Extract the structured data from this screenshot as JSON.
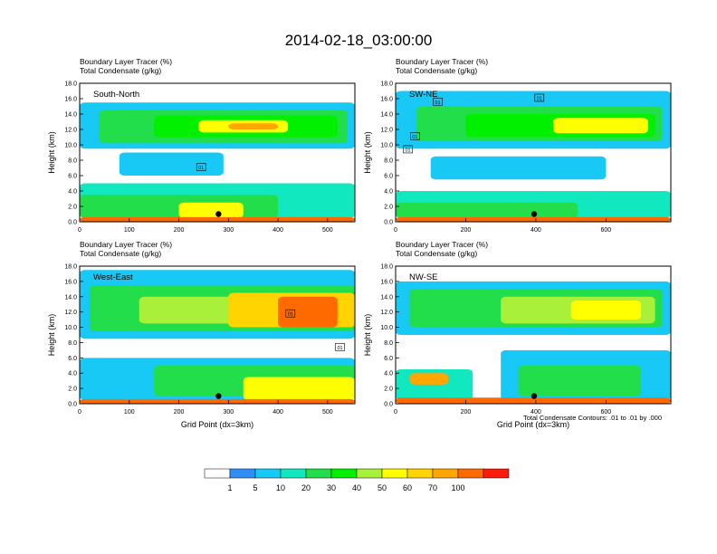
{
  "title": "2014-02-18_03:00:00",
  "colorbar": {
    "colors": [
      "#ffffff",
      "#2f8ff5",
      "#18c8f5",
      "#12e8c0",
      "#21de4a",
      "#00f000",
      "#a8f03a",
      "#ffff00",
      "#ffd400",
      "#ffa600",
      "#ff6a00",
      "#ff1a0a"
    ],
    "labels": [
      "1",
      "5",
      "10",
      "20",
      "30",
      "40",
      "50",
      "60",
      "70",
      "100"
    ]
  },
  "contour_note": "Total Condensate Contours: .01 to .01 by .000",
  "chart_data": [
    {
      "type": "heatmap",
      "panel": "South-North",
      "title_line1": "Boundary Layer Tracer    (%)",
      "title_line2": "Total Condensate    (g/kg)",
      "ylabel": "Height (km)",
      "xlabel": "",
      "xlim": [
        0,
        555
      ],
      "ylim": [
        0,
        18
      ],
      "xticks": [
        "0",
        "100",
        "200",
        "300",
        "400",
        "500"
      ],
      "xtick_values": [
        0,
        100,
        200,
        300,
        400,
        500
      ],
      "yticks": [
        "0.0",
        "2.0",
        "4.0",
        "6.0",
        "8.0",
        "10.0",
        "12.0",
        "14.0",
        "16.0",
        "18.0"
      ],
      "marker": {
        "x": 280,
        "y": 1.0
      },
      "contour_labels": [
        {
          "text": "01",
          "x": 245,
          "y": 7.0
        }
      ],
      "layers": [
        {
          "level": 2,
          "x0": 0,
          "x1": 555,
          "y0": 9.5,
          "y1": 15.5
        },
        {
          "level": 4,
          "x0": 40,
          "x1": 540,
          "y0": 10.2,
          "y1": 14.5
        },
        {
          "level": 5,
          "x0": 150,
          "x1": 520,
          "y0": 11.0,
          "y1": 13.8
        },
        {
          "level": 7,
          "x0": 240,
          "x1": 420,
          "y0": 11.6,
          "y1": 13.2
        },
        {
          "level": 9,
          "x0": 300,
          "x1": 400,
          "y0": 12.0,
          "y1": 12.8
        },
        {
          "level": 2,
          "x0": 80,
          "x1": 290,
          "y0": 6.0,
          "y1": 9.0
        },
        {
          "level": 3,
          "x0": 0,
          "x1": 555,
          "y0": 0.5,
          "y1": 5.0
        },
        {
          "level": 4,
          "x0": 0,
          "x1": 400,
          "y0": 0.5,
          "y1": 3.5
        },
        {
          "level": 7,
          "x0": 200,
          "x1": 330,
          "y0": 0.5,
          "y1": 2.5
        },
        {
          "level": 10,
          "x0": 0,
          "x1": 555,
          "y0": 0.0,
          "y1": 0.6
        }
      ]
    },
    {
      "type": "heatmap",
      "panel": "SW-NE",
      "title_line1": "Boundary Layer Tracer    (%)",
      "title_line2": "Total Condensate    (g/kg)",
      "ylabel": "Height (km)",
      "xlabel": "",
      "xlim": [
        0,
        785
      ],
      "ylim": [
        0,
        18
      ],
      "xticks": [
        "0",
        "200",
        "400",
        "600"
      ],
      "xtick_values": [
        0,
        200,
        400,
        600
      ],
      "yticks": [
        "0.0",
        "2.0",
        "4.0",
        "6.0",
        "8.0",
        "10.0",
        "12.0",
        "14.0",
        "16.0",
        "18.0"
      ],
      "marker": {
        "x": 395,
        "y": 1.0
      },
      "contour_labels": [
        {
          "text": "01",
          "x": 410,
          "y": 16.0
        },
        {
          "text": "01",
          "x": 120,
          "y": 15.5
        },
        {
          "text": "01",
          "x": 55,
          "y": 11.0
        },
        {
          "text": "01",
          "x": 35,
          "y": 9.3
        }
      ],
      "layers": [
        {
          "level": 2,
          "x0": 0,
          "x1": 785,
          "y0": 9.5,
          "y1": 17.0
        },
        {
          "level": 4,
          "x0": 60,
          "x1": 760,
          "y0": 10.5,
          "y1": 15.0
        },
        {
          "level": 5,
          "x0": 200,
          "x1": 740,
          "y0": 11.0,
          "y1": 14.0
        },
        {
          "level": 7,
          "x0": 450,
          "x1": 720,
          "y0": 11.5,
          "y1": 13.5
        },
        {
          "level": 2,
          "x0": 100,
          "x1": 600,
          "y0": 5.5,
          "y1": 8.5
        },
        {
          "level": 3,
          "x0": 0,
          "x1": 785,
          "y0": 0.5,
          "y1": 4.0
        },
        {
          "level": 4,
          "x0": 0,
          "x1": 520,
          "y0": 0.5,
          "y1": 2.5
        },
        {
          "level": 10,
          "x0": 0,
          "x1": 785,
          "y0": 0.0,
          "y1": 0.6
        }
      ]
    },
    {
      "type": "heatmap",
      "panel": "West-East",
      "title_line1": "Boundary Layer Tracer    (%)",
      "title_line2": "Total Condensate    (g/kg)",
      "ylabel": "Height (km)",
      "xlabel": "Grid Point (dx=3km)",
      "xlim": [
        0,
        555
      ],
      "ylim": [
        0,
        18
      ],
      "xticks": [
        "0",
        "100",
        "200",
        "300",
        "400",
        "500"
      ],
      "xtick_values": [
        0,
        100,
        200,
        300,
        400,
        500
      ],
      "yticks": [
        "0.0",
        "2.0",
        "4.0",
        "6.0",
        "8.0",
        "10.0",
        "12.0",
        "14.0",
        "16.0",
        "18.0"
      ],
      "marker": {
        "x": 280,
        "y": 1.0
      },
      "contour_labels": [
        {
          "text": "01",
          "x": 425,
          "y": 11.7
        },
        {
          "text": "01",
          "x": 525,
          "y": 7.3
        }
      ],
      "layers": [
        {
          "level": 2,
          "x0": 0,
          "x1": 555,
          "y0": 8.5,
          "y1": 17.5
        },
        {
          "level": 4,
          "x0": 20,
          "x1": 555,
          "y0": 9.5,
          "y1": 15.5
        },
        {
          "level": 6,
          "x0": 120,
          "x1": 555,
          "y0": 10.5,
          "y1": 14.0
        },
        {
          "level": 8,
          "x0": 300,
          "x1": 555,
          "y0": 10.0,
          "y1": 14.5
        },
        {
          "level": 10,
          "x0": 400,
          "x1": 520,
          "y0": 10.0,
          "y1": 14.0
        },
        {
          "level": 2,
          "x0": 0,
          "x1": 555,
          "y0": 0.5,
          "y1": 6.0
        },
        {
          "level": 4,
          "x0": 150,
          "x1": 555,
          "y0": 1.0,
          "y1": 5.0
        },
        {
          "level": 7,
          "x0": 330,
          "x1": 555,
          "y0": 0.5,
          "y1": 3.5
        },
        {
          "level": 10,
          "x0": 0,
          "x1": 555,
          "y0": 0.0,
          "y1": 0.6
        }
      ]
    },
    {
      "type": "heatmap",
      "panel": "NW-SE",
      "title_line1": "Boundary Layer Tracer    (%)",
      "title_line2": "Total Condensate    (g/kg)",
      "ylabel": "Height (km)",
      "xlabel": "Grid Point (dx=3km)",
      "xlim": [
        0,
        785
      ],
      "ylim": [
        0,
        18
      ],
      "xticks": [
        "0",
        "200",
        "400",
        "600"
      ],
      "xtick_values": [
        0,
        200,
        400,
        600
      ],
      "yticks": [
        "0.0",
        "2.0",
        "4.0",
        "6.0",
        "8.0",
        "10.0",
        "12.0",
        "14.0",
        "16.0",
        "18.0"
      ],
      "marker": {
        "x": 395,
        "y": 1.0
      },
      "contour_labels": [],
      "layers": [
        {
          "level": 2,
          "x0": 0,
          "x1": 785,
          "y0": 9.0,
          "y1": 16.0
        },
        {
          "level": 4,
          "x0": 40,
          "x1": 760,
          "y0": 10.0,
          "y1": 15.0
        },
        {
          "level": 6,
          "x0": 300,
          "x1": 740,
          "y0": 10.5,
          "y1": 14.0
        },
        {
          "level": 7,
          "x0": 500,
          "x1": 700,
          "y0": 11.0,
          "y1": 13.5
        },
        {
          "level": 2,
          "x0": 300,
          "x1": 785,
          "y0": 0.5,
          "y1": 7.0
        },
        {
          "level": 4,
          "x0": 350,
          "x1": 700,
          "y0": 1.0,
          "y1": 5.0
        },
        {
          "level": 3,
          "x0": 0,
          "x1": 220,
          "y0": 0.5,
          "y1": 4.5
        },
        {
          "level": 9,
          "x0": 40,
          "x1": 150,
          "y0": 2.5,
          "y1": 4.0
        },
        {
          "level": 10,
          "x0": 0,
          "x1": 785,
          "y0": 0.0,
          "y1": 0.8
        }
      ]
    }
  ]
}
